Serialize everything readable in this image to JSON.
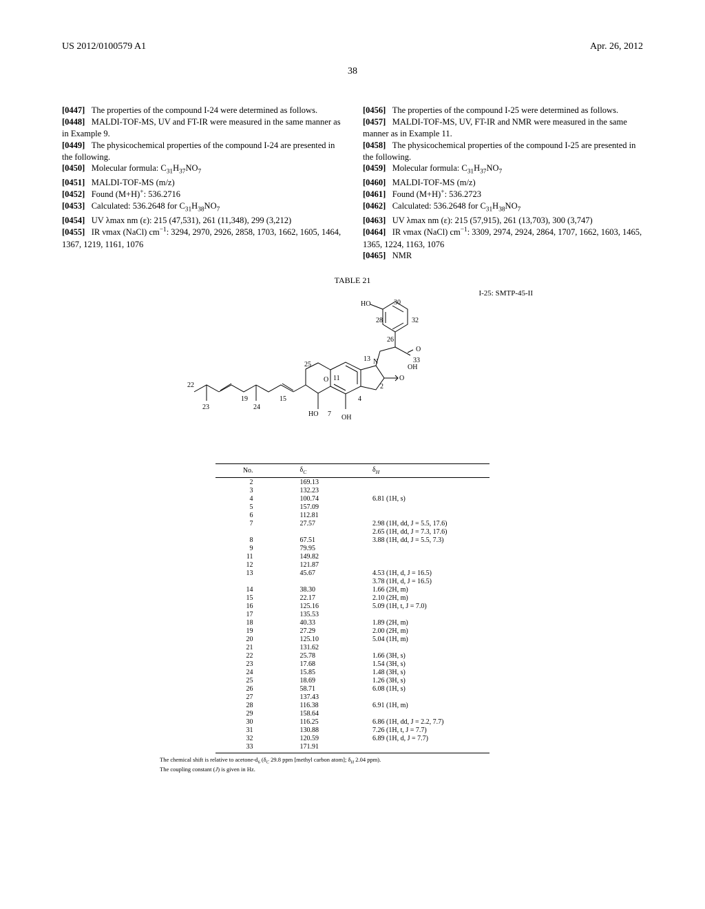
{
  "header": {
    "pub_number": "US 2012/0100579 A1",
    "date": "Apr. 26, 2012",
    "page": "38"
  },
  "left_col": {
    "p0447": "The properties of the compound I-24 were determined as follows.",
    "p0448": "MALDI-TOF-MS, UV and FT-IR were measured in the same manner as in Example 9.",
    "p0449": "The physicochemical properties of the compound I-24 are presented in the following.",
    "p0450_label": "Molecular formula: ",
    "p0450_formula": "C₃₁H₃₇NO₇",
    "p0451": "MALDI-TOF-MS (m/z)",
    "p0452_label": "Found (M+H)",
    "p0452_val": ": 536.2716",
    "p0453_label": "Calculated: 536.2648 for ",
    "p0453_formula": "C₃₁H₃₈NO₇",
    "p0454": "UV λmax nm (ε): 215 (47,531), 261 (11,348), 299 (3,212)",
    "p0455_a": "IR νmax (NaCl) cm",
    "p0455_b": ": 3294, 2970, 2926, 2858, 1703, 1662, 1605, 1464, 1367, 1219, 1161, 1076"
  },
  "right_col": {
    "p0456": "The properties of the compound I-25 were determined as follows.",
    "p0457": "MALDI-TOF-MS, UV, FT-IR and NMR were measured in the same manner as in Example 11.",
    "p0458": "The physicochemical properties of the compound I-25 are presented in the following.",
    "p0459_label": "Molecular formula: ",
    "p0459_formula": "C₃₁H₃₇NO₇",
    "p0460": "MALDI-TOF-MS (m/z)",
    "p0461_label": "Found (M+H)",
    "p0461_val": ": 536.2723",
    "p0462_label": "Calculated: 536.2648 for ",
    "p0462_formula": "C₃₁H₃₈NO₇",
    "p0463": "UV λmax nm (ε): 215 (57,915), 261 (13,703), 300 (3,747)",
    "p0464_a": "IR νmax (NaCl) cm",
    "p0464_b": ": 3309, 2974, 2924, 2864, 1707, 1662, 1603, 1465, 1365, 1224, 1163, 1076",
    "p0465": "NMR"
  },
  "table": {
    "title": "TABLE 21",
    "compound_label": "I-25: SMTP-45-II",
    "col_headers": {
      "no": "No.",
      "dc": "δ",
      "dc_sub": "C",
      "dh": "δ",
      "dh_sub": "H"
    },
    "rows": [
      {
        "no": "2",
        "dc": "169.13",
        "dh": ""
      },
      {
        "no": "3",
        "dc": "132.23",
        "dh": ""
      },
      {
        "no": "4",
        "dc": "100.74",
        "dh": "6.81 (1H, s)"
      },
      {
        "no": "5",
        "dc": "157.09",
        "dh": ""
      },
      {
        "no": "6",
        "dc": "112.81",
        "dh": ""
      },
      {
        "no": "7",
        "dc": "27.57",
        "dh": "2.98 (1H, dd, J = 5.5, 17.6)"
      },
      {
        "no": "",
        "dc": "",
        "dh": "2.65 (1H, dd, J = 7.3, 17.6)"
      },
      {
        "no": "8",
        "dc": "67.51",
        "dh": "3.88 (1H, dd, J = 5.5, 7.3)"
      },
      {
        "no": "9",
        "dc": "79.95",
        "dh": ""
      },
      {
        "no": "11",
        "dc": "149.82",
        "dh": ""
      },
      {
        "no": "12",
        "dc": "121.87",
        "dh": ""
      },
      {
        "no": "13",
        "dc": "45.67",
        "dh": "4.53 (1H, d, J = 16.5)"
      },
      {
        "no": "",
        "dc": "",
        "dh": "3.78 (1H, d, J = 16.5)"
      },
      {
        "no": "14",
        "dc": "38.30",
        "dh": "1.66 (2H, m)"
      },
      {
        "no": "15",
        "dc": "22.17",
        "dh": "2.10 (2H, m)"
      },
      {
        "no": "16",
        "dc": "125.16",
        "dh": "5.09 (1H, t, J = 7.0)"
      },
      {
        "no": "17",
        "dc": "135.53",
        "dh": ""
      },
      {
        "no": "18",
        "dc": "40.33",
        "dh": "1.89 (2H, m)"
      },
      {
        "no": "19",
        "dc": "27.29",
        "dh": "2.00 (2H, m)"
      },
      {
        "no": "20",
        "dc": "125.10",
        "dh": "5.04 (1H, m)"
      },
      {
        "no": "21",
        "dc": "131.62",
        "dh": ""
      },
      {
        "no": "22",
        "dc": "25.78",
        "dh": "1.66 (3H, s)"
      },
      {
        "no": "23",
        "dc": "17.68",
        "dh": "1.54 (3H, s)"
      },
      {
        "no": "24",
        "dc": "15.85",
        "dh": "1.48 (3H, s)"
      },
      {
        "no": "25",
        "dc": "18.69",
        "dh": "1.26 (3H, s)"
      },
      {
        "no": "26",
        "dc": "58.71",
        "dh": "6.08 (1H, s)"
      },
      {
        "no": "27",
        "dc": "137.43",
        "dh": ""
      },
      {
        "no": "28",
        "dc": "116.38",
        "dh": "6.91 (1H, m)"
      },
      {
        "no": "29",
        "dc": "158.64",
        "dh": ""
      },
      {
        "no": "30",
        "dc": "116.25",
        "dh": "6.86 (1H, dd, J = 2.2, 7.7)"
      },
      {
        "no": "31",
        "dc": "130.88",
        "dh": "7.26 (1H, t, J = 7.7)"
      },
      {
        "no": "32",
        "dc": "120.59",
        "dh": "6.89 (1H, d, J = 7.7)"
      },
      {
        "no": "33",
        "dc": "171.91",
        "dh": ""
      }
    ],
    "footnote1_a": "The chemical shift is relative to acetone-d",
    "footnote1_b": " (δ",
    "footnote1_c": " 29.8 ppm [methyl carbon atom]; δ",
    "footnote1_d": " 2.04 ppm).",
    "footnote2_a": "The coupling constant (",
    "footnote2_b": ") is given in Hz."
  },
  "diagram_labels": {
    "l22": "22",
    "l23": "23",
    "l19": "19",
    "l24": "24",
    "l15": "15",
    "l25": "25",
    "l11": "11",
    "l13": "13",
    "l7": "7",
    "l2": "2",
    "l4": "4",
    "l26": "26",
    "l28": "28",
    "l30": "30",
    "l32": "32",
    "l33": "33",
    "ho1": "HO",
    "ho2": "HO",
    "oh1": "OH",
    "oh2": "OH",
    "o1": "O",
    "o2": "O",
    "o3": "O",
    "n": "N"
  }
}
